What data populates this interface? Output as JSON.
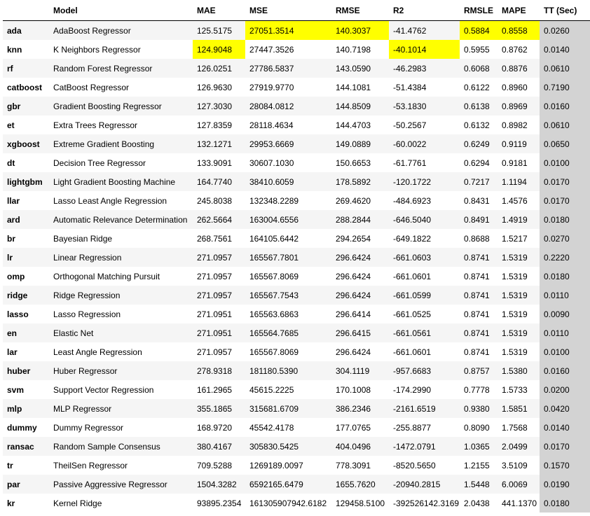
{
  "table": {
    "headers": [
      "",
      "Model",
      "MAE",
      "MSE",
      "RMSE",
      "R2",
      "RMSLE",
      "MAPE",
      "TT (Sec)"
    ],
    "rows": [
      {
        "id": "ada",
        "model": "AdaBoost Regressor",
        "mae": "125.5175",
        "mse": "27051.3514",
        "rmse": "140.3037",
        "r2": "-41.4762",
        "rmsle": "0.5884",
        "mape": "0.8558",
        "tt": "0.0260"
      },
      {
        "id": "knn",
        "model": "K Neighbors Regressor",
        "mae": "124.9048",
        "mse": "27447.3526",
        "rmse": "140.7198",
        "r2": "-40.1014",
        "rmsle": "0.5955",
        "mape": "0.8762",
        "tt": "0.0140"
      },
      {
        "id": "rf",
        "model": "Random Forest Regressor",
        "mae": "126.0251",
        "mse": "27786.5837",
        "rmse": "143.0590",
        "r2": "-46.2983",
        "rmsle": "0.6068",
        "mape": "0.8876",
        "tt": "0.0610"
      },
      {
        "id": "catboost",
        "model": "CatBoost Regressor",
        "mae": "126.9630",
        "mse": "27919.9770",
        "rmse": "144.1081",
        "r2": "-51.4384",
        "rmsle": "0.6122",
        "mape": "0.8960",
        "tt": "0.7190"
      },
      {
        "id": "gbr",
        "model": "Gradient Boosting Regressor",
        "mae": "127.3030",
        "mse": "28084.0812",
        "rmse": "144.8509",
        "r2": "-53.1830",
        "rmsle": "0.6138",
        "mape": "0.8969",
        "tt": "0.0160"
      },
      {
        "id": "et",
        "model": "Extra Trees Regressor",
        "mae": "127.8359",
        "mse": "28118.4634",
        "rmse": "144.4703",
        "r2": "-50.2567",
        "rmsle": "0.6132",
        "mape": "0.8982",
        "tt": "0.0610"
      },
      {
        "id": "xgboost",
        "model": "Extreme Gradient Boosting",
        "mae": "132.1271",
        "mse": "29953.6669",
        "rmse": "149.0889",
        "r2": "-60.0022",
        "rmsle": "0.6249",
        "mape": "0.9119",
        "tt": "0.0650"
      },
      {
        "id": "dt",
        "model": "Decision Tree Regressor",
        "mae": "133.9091",
        "mse": "30607.1030",
        "rmse": "150.6653",
        "r2": "-61.7761",
        "rmsle": "0.6294",
        "mape": "0.9181",
        "tt": "0.0100"
      },
      {
        "id": "lightgbm",
        "model": "Light Gradient Boosting Machine",
        "mae": "164.7740",
        "mse": "38410.6059",
        "rmse": "178.5892",
        "r2": "-120.1722",
        "rmsle": "0.7217",
        "mape": "1.1194",
        "tt": "0.0170"
      },
      {
        "id": "llar",
        "model": "Lasso Least Angle Regression",
        "mae": "245.8038",
        "mse": "132348.2289",
        "rmse": "269.4620",
        "r2": "-484.6923",
        "rmsle": "0.8431",
        "mape": "1.4576",
        "tt": "0.0170"
      },
      {
        "id": "ard",
        "model": "Automatic Relevance Determination",
        "mae": "262.5664",
        "mse": "163004.6556",
        "rmse": "288.2844",
        "r2": "-646.5040",
        "rmsle": "0.8491",
        "mape": "1.4919",
        "tt": "0.0180"
      },
      {
        "id": "br",
        "model": "Bayesian Ridge",
        "mae": "268.7561",
        "mse": "164105.6442",
        "rmse": "294.2654",
        "r2": "-649.1822",
        "rmsle": "0.8688",
        "mape": "1.5217",
        "tt": "0.0270"
      },
      {
        "id": "lr",
        "model": "Linear Regression",
        "mae": "271.0957",
        "mse": "165567.7801",
        "rmse": "296.6424",
        "r2": "-661.0603",
        "rmsle": "0.8741",
        "mape": "1.5319",
        "tt": "0.2220"
      },
      {
        "id": "omp",
        "model": "Orthogonal Matching Pursuit",
        "mae": "271.0957",
        "mse": "165567.8069",
        "rmse": "296.6424",
        "r2": "-661.0601",
        "rmsle": "0.8741",
        "mape": "1.5319",
        "tt": "0.0180"
      },
      {
        "id": "ridge",
        "model": "Ridge Regression",
        "mae": "271.0957",
        "mse": "165567.7543",
        "rmse": "296.6424",
        "r2": "-661.0599",
        "rmsle": "0.8741",
        "mape": "1.5319",
        "tt": "0.0110"
      },
      {
        "id": "lasso",
        "model": "Lasso Regression",
        "mae": "271.0951",
        "mse": "165563.6863",
        "rmse": "296.6414",
        "r2": "-661.0525",
        "rmsle": "0.8741",
        "mape": "1.5319",
        "tt": "0.0090"
      },
      {
        "id": "en",
        "model": "Elastic Net",
        "mae": "271.0951",
        "mse": "165564.7685",
        "rmse": "296.6415",
        "r2": "-661.0561",
        "rmsle": "0.8741",
        "mape": "1.5319",
        "tt": "0.0110"
      },
      {
        "id": "lar",
        "model": "Least Angle Regression",
        "mae": "271.0957",
        "mse": "165567.8069",
        "rmse": "296.6424",
        "r2": "-661.0601",
        "rmsle": "0.8741",
        "mape": "1.5319",
        "tt": "0.0100"
      },
      {
        "id": "huber",
        "model": "Huber Regressor",
        "mae": "278.9318",
        "mse": "181180.5390",
        "rmse": "304.1119",
        "r2": "-957.6683",
        "rmsle": "0.8757",
        "mape": "1.5380",
        "tt": "0.0160"
      },
      {
        "id": "svm",
        "model": "Support Vector Regression",
        "mae": "161.2965",
        "mse": "45615.2225",
        "rmse": "170.1008",
        "r2": "-174.2990",
        "rmsle": "0.7778",
        "mape": "1.5733",
        "tt": "0.0200"
      },
      {
        "id": "mlp",
        "model": "MLP Regressor",
        "mae": "355.1865",
        "mse": "315681.6709",
        "rmse": "386.2346",
        "r2": "-2161.6519",
        "rmsle": "0.9380",
        "mape": "1.5851",
        "tt": "0.0420"
      },
      {
        "id": "dummy",
        "model": "Dummy Regressor",
        "mae": "168.9720",
        "mse": "45542.4178",
        "rmse": "177.0765",
        "r2": "-255.8877",
        "rmsle": "0.8090",
        "mape": "1.7568",
        "tt": "0.0140"
      },
      {
        "id": "ransac",
        "model": "Random Sample Consensus",
        "mae": "380.4167",
        "mse": "305830.5425",
        "rmse": "404.0496",
        "r2": "-1472.0791",
        "rmsle": "1.0365",
        "mape": "2.0499",
        "tt": "0.0170"
      },
      {
        "id": "tr",
        "model": "TheilSen Regressor",
        "mae": "709.5288",
        "mse": "1269189.0097",
        "rmse": "778.3091",
        "r2": "-8520.5650",
        "rmsle": "1.2155",
        "mape": "3.5109",
        "tt": "0.1570"
      },
      {
        "id": "par",
        "model": "Passive Aggressive Regressor",
        "mae": "1504.3282",
        "mse": "6592165.6479",
        "rmse": "1655.7620",
        "r2": "-20940.2815",
        "rmsle": "1.5448",
        "mape": "6.0069",
        "tt": "0.0190"
      },
      {
        "id": "kr",
        "model": "Kernel Ridge",
        "mae": "93895.2354",
        "mse": "161305907942.6182",
        "rmse": "129458.5100",
        "r2": "-392526142.3169",
        "rmsle": "2.0438",
        "mape": "441.1370",
        "tt": "0.0180"
      }
    ],
    "highlights": [
      {
        "row": 0,
        "col": "mse"
      },
      {
        "row": 0,
        "col": "rmse"
      },
      {
        "row": 0,
        "col": "rmsle"
      },
      {
        "row": 0,
        "col": "mape"
      },
      {
        "row": 1,
        "col": "mae"
      },
      {
        "row": 1,
        "col": "r2"
      }
    ],
    "colors": {
      "highlight": "#ffff00",
      "tt_column": "#d3d3d3",
      "stripe": "#f5f5f5"
    }
  }
}
